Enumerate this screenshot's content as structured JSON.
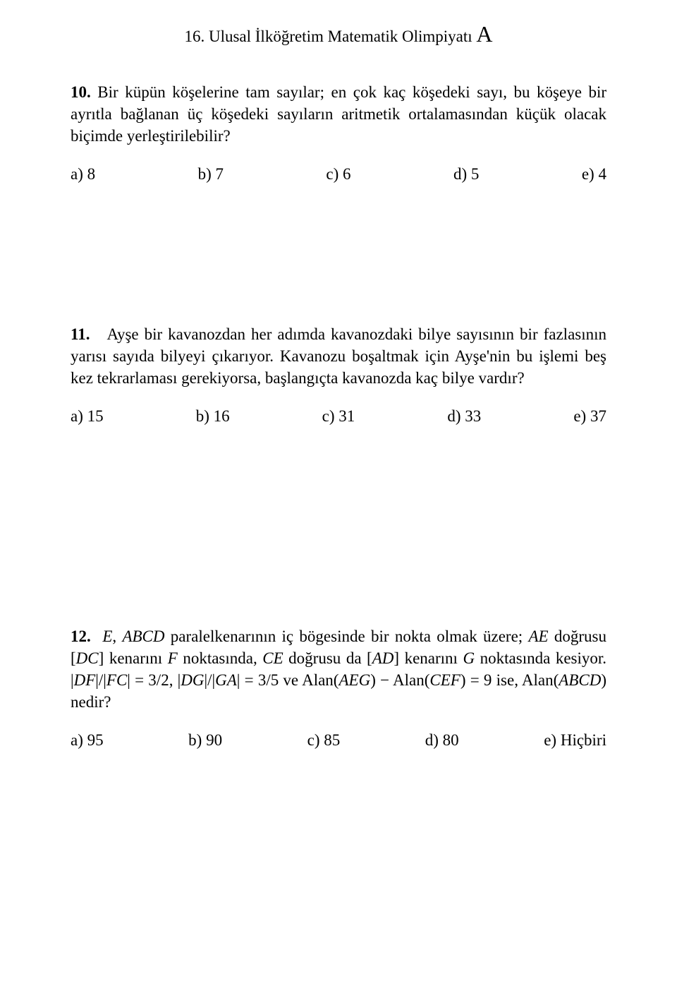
{
  "header": {
    "title_prefix": "16. Ulusal İlköğretim Matematik Olimpiyatı ",
    "title_suffix": "A"
  },
  "questions": [
    {
      "number": "10.",
      "text": "Bir küpün köşelerine tam sayılar; en çok kaç köşedeki sayı, bu köşeye bir ayrıtla bağlanan üç köşedeki sayıların aritmetik ortalamasından küçük olacak biçimde yerleştirilebilir?",
      "options": {
        "a": "a) 8",
        "b": "b) 7",
        "c": "c) 6",
        "d": "d) 5",
        "e": "e) 4"
      }
    },
    {
      "number": "11.",
      "text": "Ayşe bir kavanozdan her adımda kavanozdaki bilye sayısının bir fazlasının yarısı sayıda bilyeyi çıkarıyor. Kavanozu boşaltmak için Ayşe'nin bu işlemi beş kez tekrarlaması gerekiyorsa, başlangıçta kavanozda kaç bilye vardır?",
      "options": {
        "a": "a) 15",
        "b": "b) 16",
        "c": "c) 31",
        "d": "d) 33",
        "e": "e) 37"
      }
    },
    {
      "number": "12.",
      "math": {
        "p1": "E",
        "p2": ", ",
        "p3": "ABCD",
        "p4": " paralelkenarının iç bögesinde bir nokta olmak üzere; ",
        "p5": "AE",
        "p6": " doğrusu [",
        "p7": "DC",
        "p8": "] kenarını ",
        "p9": "F",
        "p10": " noktasında, ",
        "p11": "CE",
        "p12": " doğrusu da [",
        "p13": "AD",
        "p14": "] kenarını ",
        "p15": "G",
        "p16": " noktasında kesiyor.   |",
        "p17": "DF",
        "p18": "|/|",
        "p19": "FC",
        "p20": "| = 3/2, |",
        "p21": "DG",
        "p22": "|/|",
        "p23": "GA",
        "p24": "| = 3/5 ve Alan(",
        "p25": "AEG",
        "p26": ") − Alan(",
        "p27": "CEF",
        "p28": ") = 9 ise, Alan(",
        "p29": "ABCD",
        "p30": ") nedir?"
      },
      "options": {
        "a": "a) 95",
        "b": "b) 90",
        "c": "c) 85",
        "d": "d) 80",
        "e": "e) Hiçbiri"
      }
    }
  ]
}
